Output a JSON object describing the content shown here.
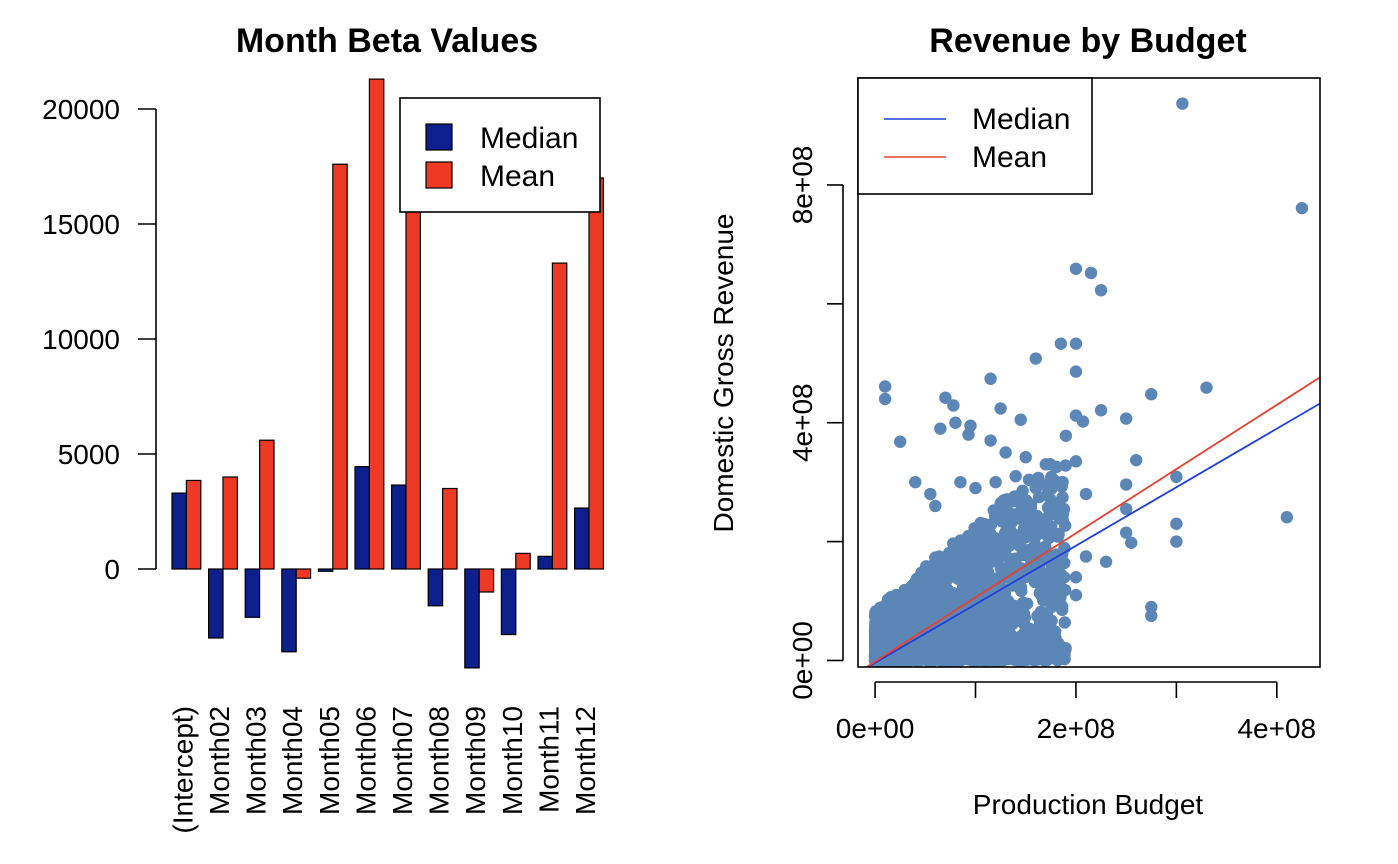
{
  "chart_data": [
    {
      "type": "bar",
      "title": "Month Beta Values",
      "categories": [
        "(Intercept)",
        "Month02",
        "Month03",
        "Month04",
        "Month05",
        "Month06",
        "Month07",
        "Month08",
        "Month09",
        "Month10",
        "Month11",
        "Month12"
      ],
      "series": [
        {
          "name": "Median",
          "color": "#0d1f8c",
          "values": [
            3300,
            -3000,
            -2100,
            -3600,
            -100,
            4450,
            3650,
            -1600,
            -4300,
            -2850,
            550,
            2650
          ]
        },
        {
          "name": "Mean",
          "color": "#ee3a24",
          "values": [
            3850,
            4000,
            5600,
            -400,
            17600,
            21300,
            16200,
            3500,
            -1000,
            680,
            13300,
            17000
          ]
        }
      ],
      "yticks": [
        0,
        5000,
        10000,
        15000,
        20000
      ],
      "ylim": [
        -4800,
        21300
      ],
      "xlabel": "",
      "ylabel": "",
      "legend_placement": "top-right",
      "grid": false
    },
    {
      "type": "scatter",
      "title": "Revenue by Budget",
      "xlabel": "Production Budget",
      "ylabel": "Domestic Gross Revenue",
      "xticks": [
        "0e+00",
        "2e+08",
        "4e+08"
      ],
      "yticks": [
        "0e+00",
        "4e+08",
        "8e+08"
      ],
      "xlim": [
        -17000000,
        443000000
      ],
      "ylim": [
        -11000000,
        980000000
      ],
      "point_color": "#5b86b5",
      "points": [
        [
          306000000,
          937000000
        ],
        [
          425000000,
          761000000
        ],
        [
          200000000,
          659000000
        ],
        [
          215000000,
          652000000
        ],
        [
          225000000,
          623000000
        ],
        [
          185000000,
          533000000
        ],
        [
          200000000,
          533000000
        ],
        [
          160000000,
          508000000
        ],
        [
          200000000,
          486000000
        ],
        [
          115000000,
          474000000
        ],
        [
          10000000,
          461000000
        ],
        [
          330000000,
          459000000
        ],
        [
          10000000,
          440000000
        ],
        [
          275000000,
          448000000
        ],
        [
          70000000,
          442000000
        ],
        [
          78000000,
          429000000
        ],
        [
          125000000,
          424000000
        ],
        [
          225000000,
          421000000
        ],
        [
          200000000,
          412000000
        ],
        [
          250000000,
          407000000
        ],
        [
          145000000,
          405000000
        ],
        [
          207000000,
          402000000
        ],
        [
          80000000,
          400000000
        ],
        [
          95000000,
          395000000
        ],
        [
          65000000,
          390000000
        ],
        [
          93000000,
          380000000
        ],
        [
          115000000,
          370000000
        ],
        [
          190000000,
          378000000
        ],
        [
          25000000,
          368000000
        ],
        [
          130000000,
          350000000
        ],
        [
          150000000,
          342000000
        ],
        [
          170000000,
          330000000
        ],
        [
          200000000,
          335000000
        ],
        [
          260000000,
          337000000
        ],
        [
          300000000,
          309000000
        ],
        [
          250000000,
          296000000
        ],
        [
          210000000,
          280000000
        ],
        [
          250000000,
          255000000
        ],
        [
          410000000,
          241000000
        ],
        [
          300000000,
          230000000
        ],
        [
          300000000,
          200000000
        ],
        [
          255000000,
          198000000
        ],
        [
          250000000,
          215000000
        ],
        [
          230000000,
          166000000
        ],
        [
          210000000,
          175000000
        ],
        [
          180000000,
          160000000
        ],
        [
          200000000,
          140000000
        ],
        [
          275000000,
          90000000
        ],
        [
          275000000,
          75000000
        ],
        [
          200000000,
          110000000
        ],
        [
          40000000,
          300000000
        ],
        [
          55000000,
          280000000
        ],
        [
          60000000,
          260000000
        ],
        [
          85000000,
          300000000
        ],
        [
          100000000,
          290000000
        ],
        [
          120000000,
          300000000
        ],
        [
          140000000,
          310000000
        ],
        [
          160000000,
          290000000
        ],
        [
          175000000,
          270000000
        ],
        [
          150000000,
          250000000
        ]
      ],
      "lines": [
        {
          "name": "Median",
          "color": "#1f3fe0",
          "intercept": -4000000,
          "slope": 0.985
        },
        {
          "name": "Mean",
          "color": "#e8412f",
          "intercept": -2000000,
          "slope": 1.08
        }
      ],
      "legend_placement": "top-left",
      "grid": false
    }
  ]
}
